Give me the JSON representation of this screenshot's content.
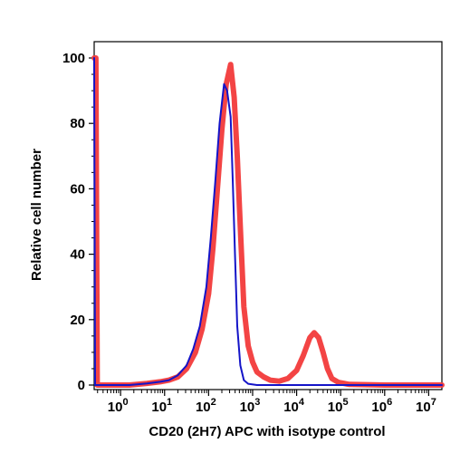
{
  "chart_data": {
    "type": "line",
    "title": "",
    "xlabel": "CD20 (2H7) APC with isotype control",
    "ylabel": "Relative cell number",
    "x_scale": "log",
    "xlim_log10": [
      -0.6,
      7.3
    ],
    "ylim": [
      0,
      100
    ],
    "y_ticks": [
      0,
      20,
      40,
      60,
      80,
      100
    ],
    "x_ticks": [
      {
        "base": "10",
        "exp": "0",
        "log": 0
      },
      {
        "base": "10",
        "exp": "1",
        "log": 1
      },
      {
        "base": "10",
        "exp": "2",
        "log": 2
      },
      {
        "base": "10",
        "exp": "3",
        "log": 3
      },
      {
        "base": "10",
        "exp": "4",
        "log": 4
      },
      {
        "base": "10",
        "exp": "5",
        "log": 5
      },
      {
        "base": "10",
        "exp": "6",
        "log": 6
      },
      {
        "base": "10",
        "exp": "7",
        "log": 7
      }
    ],
    "grid": false,
    "legend": "none",
    "series": [
      {
        "color": "#f23a3a",
        "points": [
          [
            -0.6,
            100
          ],
          [
            -0.56,
            100
          ],
          [
            -0.53,
            0
          ],
          [
            -0.3,
            0
          ],
          [
            0.2,
            0
          ],
          [
            0.6,
            0.5
          ],
          [
            0.9,
            1
          ],
          [
            1.1,
            1.5
          ],
          [
            1.3,
            2.5
          ],
          [
            1.5,
            5
          ],
          [
            1.7,
            10
          ],
          [
            1.85,
            17
          ],
          [
            2.0,
            28
          ],
          [
            2.1,
            42
          ],
          [
            2.2,
            60
          ],
          [
            2.3,
            78
          ],
          [
            2.4,
            92
          ],
          [
            2.5,
            98
          ],
          [
            2.58,
            88
          ],
          [
            2.65,
            70
          ],
          [
            2.73,
            45
          ],
          [
            2.8,
            24
          ],
          [
            2.9,
            12
          ],
          [
            3.0,
            7
          ],
          [
            3.1,
            4
          ],
          [
            3.25,
            2.5
          ],
          [
            3.4,
            1.5
          ],
          [
            3.6,
            1.2
          ],
          [
            3.8,
            2
          ],
          [
            4.0,
            4.5
          ],
          [
            4.15,
            9
          ],
          [
            4.3,
            14.5
          ],
          [
            4.4,
            16
          ],
          [
            4.5,
            14.5
          ],
          [
            4.6,
            10
          ],
          [
            4.7,
            5
          ],
          [
            4.8,
            2
          ],
          [
            4.95,
            0.8
          ],
          [
            5.2,
            0.2
          ],
          [
            6.0,
            0
          ],
          [
            7.3,
            0
          ]
        ]
      },
      {
        "color": "#1414c8",
        "points": [
          [
            -0.6,
            100
          ],
          [
            -0.58,
            0
          ],
          [
            -0.2,
            0
          ],
          [
            0.2,
            0
          ],
          [
            0.6,
            0.5
          ],
          [
            0.9,
            1
          ],
          [
            1.1,
            1.5
          ],
          [
            1.3,
            3
          ],
          [
            1.5,
            6
          ],
          [
            1.65,
            11
          ],
          [
            1.8,
            18
          ],
          [
            1.95,
            30
          ],
          [
            2.05,
            45
          ],
          [
            2.15,
            62
          ],
          [
            2.25,
            80
          ],
          [
            2.35,
            92
          ],
          [
            2.42,
            90
          ],
          [
            2.5,
            82
          ],
          [
            2.55,
            62
          ],
          [
            2.6,
            40
          ],
          [
            2.65,
            18
          ],
          [
            2.72,
            6
          ],
          [
            2.8,
            1.5
          ],
          [
            2.9,
            0.4
          ],
          [
            3.1,
            0
          ],
          [
            7.3,
            0
          ]
        ]
      }
    ]
  }
}
